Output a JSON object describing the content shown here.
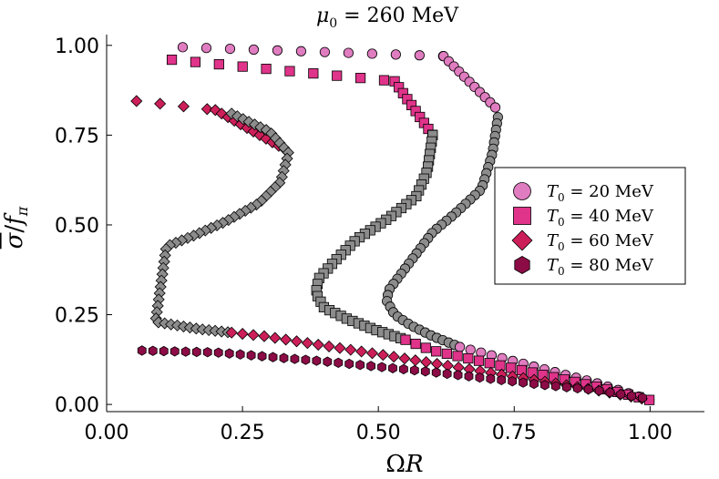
{
  "chart_data": {
    "type": "scatter",
    "title": "μ₀ = 260 MeV",
    "title_parts": {
      "symbol": "μ",
      "sub": "0",
      "rest": " = 260 MeV"
    },
    "xlabel": "ΩR",
    "ylabel": "σ̄/f_π",
    "xlabel_parts": {
      "a": "Ω",
      "b": "R"
    },
    "ylabel_parts": {
      "num": "σ",
      "den": "f",
      "den_sub": "π"
    },
    "xlim": [
      0,
      1.1
    ],
    "ylim": [
      -0.02,
      1.03
    ],
    "xticks": [
      0.0,
      0.25,
      0.5,
      0.75,
      1.0
    ],
    "xtick_labels": [
      "0.00",
      "0.25",
      "0.50",
      "0.75",
      "1.00"
    ],
    "yticks": [
      0.0,
      0.25,
      0.5,
      0.75,
      1.0
    ],
    "ytick_labels": [
      "0.00",
      "0.25",
      "0.50",
      "0.75",
      "1.00"
    ],
    "legend_position": "right",
    "unstable_color": "#8c8c8c",
    "series": [
      {
        "name": "T₀ = 20 MeV",
        "legend_sym": "T",
        "legend_sub": "0",
        "legend_rest": " = 20 MeV",
        "marker": "circle",
        "color": "#e07cc0",
        "upper_start": [
          0.14,
          0.995
        ],
        "upper_knee": [
          0.62,
          0.97
        ],
        "upper_turn": [
          0.72,
          0.82
        ],
        "middle": [
          [
            0.72,
            0.8
          ],
          [
            0.71,
            0.7
          ],
          [
            0.69,
            0.6
          ],
          [
            0.64,
            0.53
          ],
          [
            0.6,
            0.48
          ],
          [
            0.56,
            0.4
          ],
          [
            0.52,
            0.32
          ],
          [
            0.515,
            0.29
          ],
          [
            0.53,
            0.25
          ],
          [
            0.56,
            0.22
          ],
          [
            0.6,
            0.19
          ],
          [
            0.65,
            0.16
          ]
        ],
        "lower": [
          [
            0.65,
            0.16
          ],
          [
            0.8,
            0.1
          ],
          [
            0.9,
            0.06
          ],
          [
            1.0,
            0.012
          ]
        ]
      },
      {
        "name": "T₀ = 40 MeV",
        "legend_sym": "T",
        "legend_sub": "0",
        "legend_rest": " = 40 MeV",
        "marker": "square",
        "color": "#e0338a",
        "upper_start": [
          0.12,
          0.96
        ],
        "upper_knee": [
          0.53,
          0.9
        ],
        "upper_turn": [
          0.6,
          0.75
        ],
        "middle": [
          [
            0.6,
            0.75
          ],
          [
            0.59,
            0.65
          ],
          [
            0.57,
            0.58
          ],
          [
            0.52,
            0.52
          ],
          [
            0.46,
            0.46
          ],
          [
            0.42,
            0.4
          ],
          [
            0.39,
            0.35
          ],
          [
            0.385,
            0.31
          ],
          [
            0.4,
            0.27
          ],
          [
            0.44,
            0.24
          ],
          [
            0.49,
            0.21
          ],
          [
            0.55,
            0.18
          ]
        ],
        "lower": [
          [
            0.55,
            0.18
          ],
          [
            0.6,
            0.15
          ],
          [
            0.75,
            0.1
          ],
          [
            0.9,
            0.05
          ],
          [
            1.0,
            0.012
          ]
        ]
      },
      {
        "name": "T₀ = 60 MeV",
        "legend_sym": "T",
        "legend_sub": "0",
        "legend_rest": " = 60 MeV",
        "marker": "diamond",
        "color": "#cc1f5a",
        "upper_start": [
          0.055,
          0.845
        ],
        "upper_knee": [
          0.2,
          0.82
        ],
        "upper_turn": [
          0.34,
          0.7
        ],
        "middle": [
          [
            0.23,
            0.81
          ],
          [
            0.3,
            0.76
          ],
          [
            0.335,
            0.7
          ],
          [
            0.32,
            0.62
          ],
          [
            0.28,
            0.56
          ],
          [
            0.22,
            0.51
          ],
          [
            0.16,
            0.47
          ],
          [
            0.11,
            0.44
          ],
          [
            0.09,
            0.23
          ],
          [
            0.17,
            0.21
          ],
          [
            0.23,
            0.2
          ]
        ],
        "lower": [
          [
            0.23,
            0.2
          ],
          [
            0.29,
            0.19
          ],
          [
            0.5,
            0.14
          ],
          [
            0.7,
            0.09
          ],
          [
            0.9,
            0.04
          ],
          [
            1.0,
            0.012
          ]
        ]
      },
      {
        "name": "T₀ = 80 MeV",
        "legend_sym": "T",
        "legend_sub": "0",
        "legend_rest": " = 80 MeV",
        "marker": "hexagon",
        "color": "#8c0c46",
        "upper_start": [
          0.065,
          0.15
        ],
        "upper_knee": [
          0.065,
          0.15
        ],
        "upper_turn": [
          0.065,
          0.15
        ],
        "middle": [],
        "lower": [
          [
            0.065,
            0.15
          ],
          [
            0.2,
            0.145
          ],
          [
            0.4,
            0.12
          ],
          [
            0.6,
            0.09
          ],
          [
            0.8,
            0.055
          ],
          [
            0.9,
            0.04
          ],
          [
            1.0,
            0.015
          ]
        ]
      }
    ]
  }
}
